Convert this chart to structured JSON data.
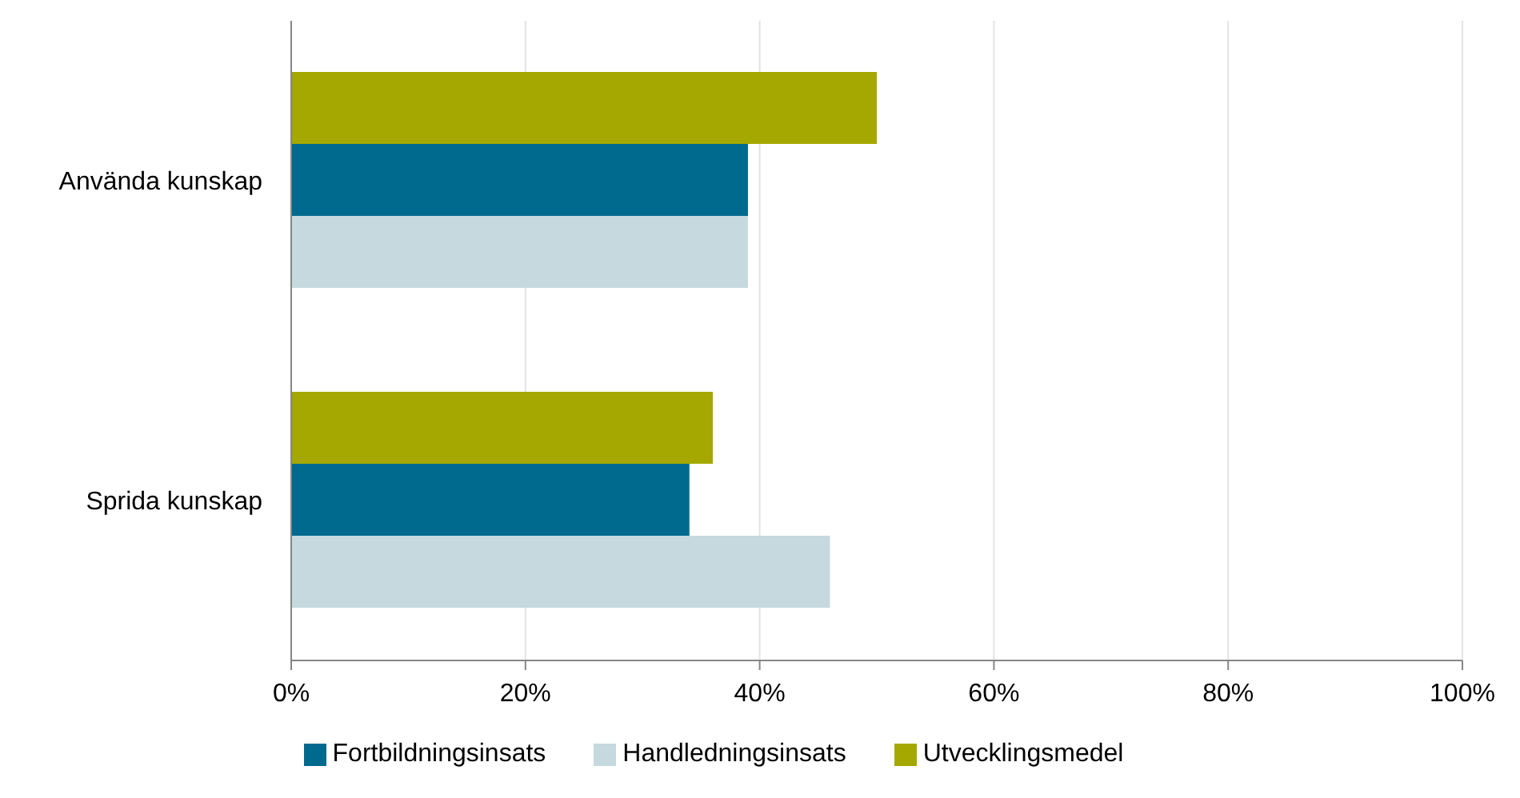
{
  "chart_data": {
    "type": "bar",
    "orientation": "horizontal",
    "categories": [
      "Använda kunskap",
      "Sprida kunskap"
    ],
    "series": [
      {
        "name": "Utvecklingsmedel",
        "color": "#a5a800",
        "values": [
          50,
          36
        ]
      },
      {
        "name": "Fortbildningsinsats",
        "color": "#006a8e",
        "values": [
          39,
          34
        ]
      },
      {
        "name": "Handledningsinsats",
        "color": "#c5d9de",
        "values": [
          39,
          46
        ]
      }
    ],
    "xlim": [
      0,
      100
    ],
    "xticks": [
      {
        "value": 0,
        "label": "0%"
      },
      {
        "value": 20,
        "label": "20%"
      },
      {
        "value": 40,
        "label": "40%"
      },
      {
        "value": 60,
        "label": "60%"
      },
      {
        "value": 80,
        "label": "80%"
      },
      {
        "value": 100,
        "label": "100%"
      }
    ],
    "grid": "x",
    "legend": "bottom"
  }
}
